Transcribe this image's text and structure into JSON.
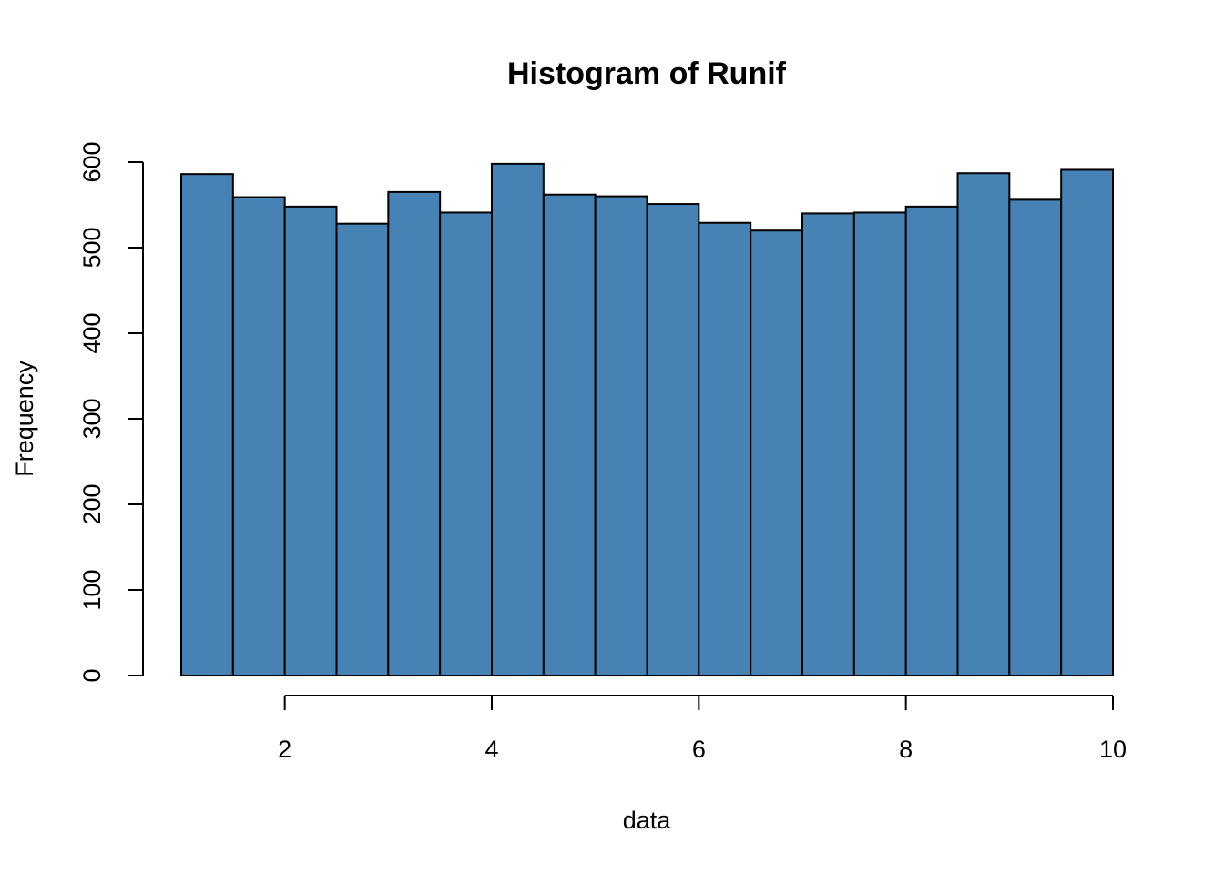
{
  "chart_data": {
    "type": "bar",
    "subtype": "histogram",
    "title": "Histogram of Runif",
    "xlabel": "data",
    "ylabel": "Frequency",
    "bins": [
      {
        "x0": 1.0,
        "x1": 1.5,
        "count": 586
      },
      {
        "x0": 1.5,
        "x1": 2.0,
        "count": 559
      },
      {
        "x0": 2.0,
        "x1": 2.5,
        "count": 548
      },
      {
        "x0": 2.5,
        "x1": 3.0,
        "count": 528
      },
      {
        "x0": 3.0,
        "x1": 3.5,
        "count": 565
      },
      {
        "x0": 3.5,
        "x1": 4.0,
        "count": 541
      },
      {
        "x0": 4.0,
        "x1": 4.5,
        "count": 598
      },
      {
        "x0": 4.5,
        "x1": 5.0,
        "count": 562
      },
      {
        "x0": 5.0,
        "x1": 5.5,
        "count": 560
      },
      {
        "x0": 5.5,
        "x1": 6.0,
        "count": 551
      },
      {
        "x0": 6.0,
        "x1": 6.5,
        "count": 529
      },
      {
        "x0": 6.5,
        "x1": 7.0,
        "count": 520
      },
      {
        "x0": 7.0,
        "x1": 7.5,
        "count": 540
      },
      {
        "x0": 7.5,
        "x1": 8.0,
        "count": 541
      },
      {
        "x0": 8.0,
        "x1": 8.5,
        "count": 548
      },
      {
        "x0": 8.5,
        "x1": 9.0,
        "count": 587
      },
      {
        "x0": 9.0,
        "x1": 9.5,
        "count": 556
      },
      {
        "x0": 9.5,
        "x1": 10.0,
        "count": 591
      }
    ],
    "xlim": [
      1,
      10
    ],
    "ylim": [
      0,
      600
    ],
    "xticks": [
      2,
      4,
      6,
      8,
      10
    ],
    "yticks": [
      0,
      100,
      200,
      300,
      400,
      500,
      600
    ],
    "bar_color": "#4682B4",
    "grid": false,
    "legend": "none"
  }
}
